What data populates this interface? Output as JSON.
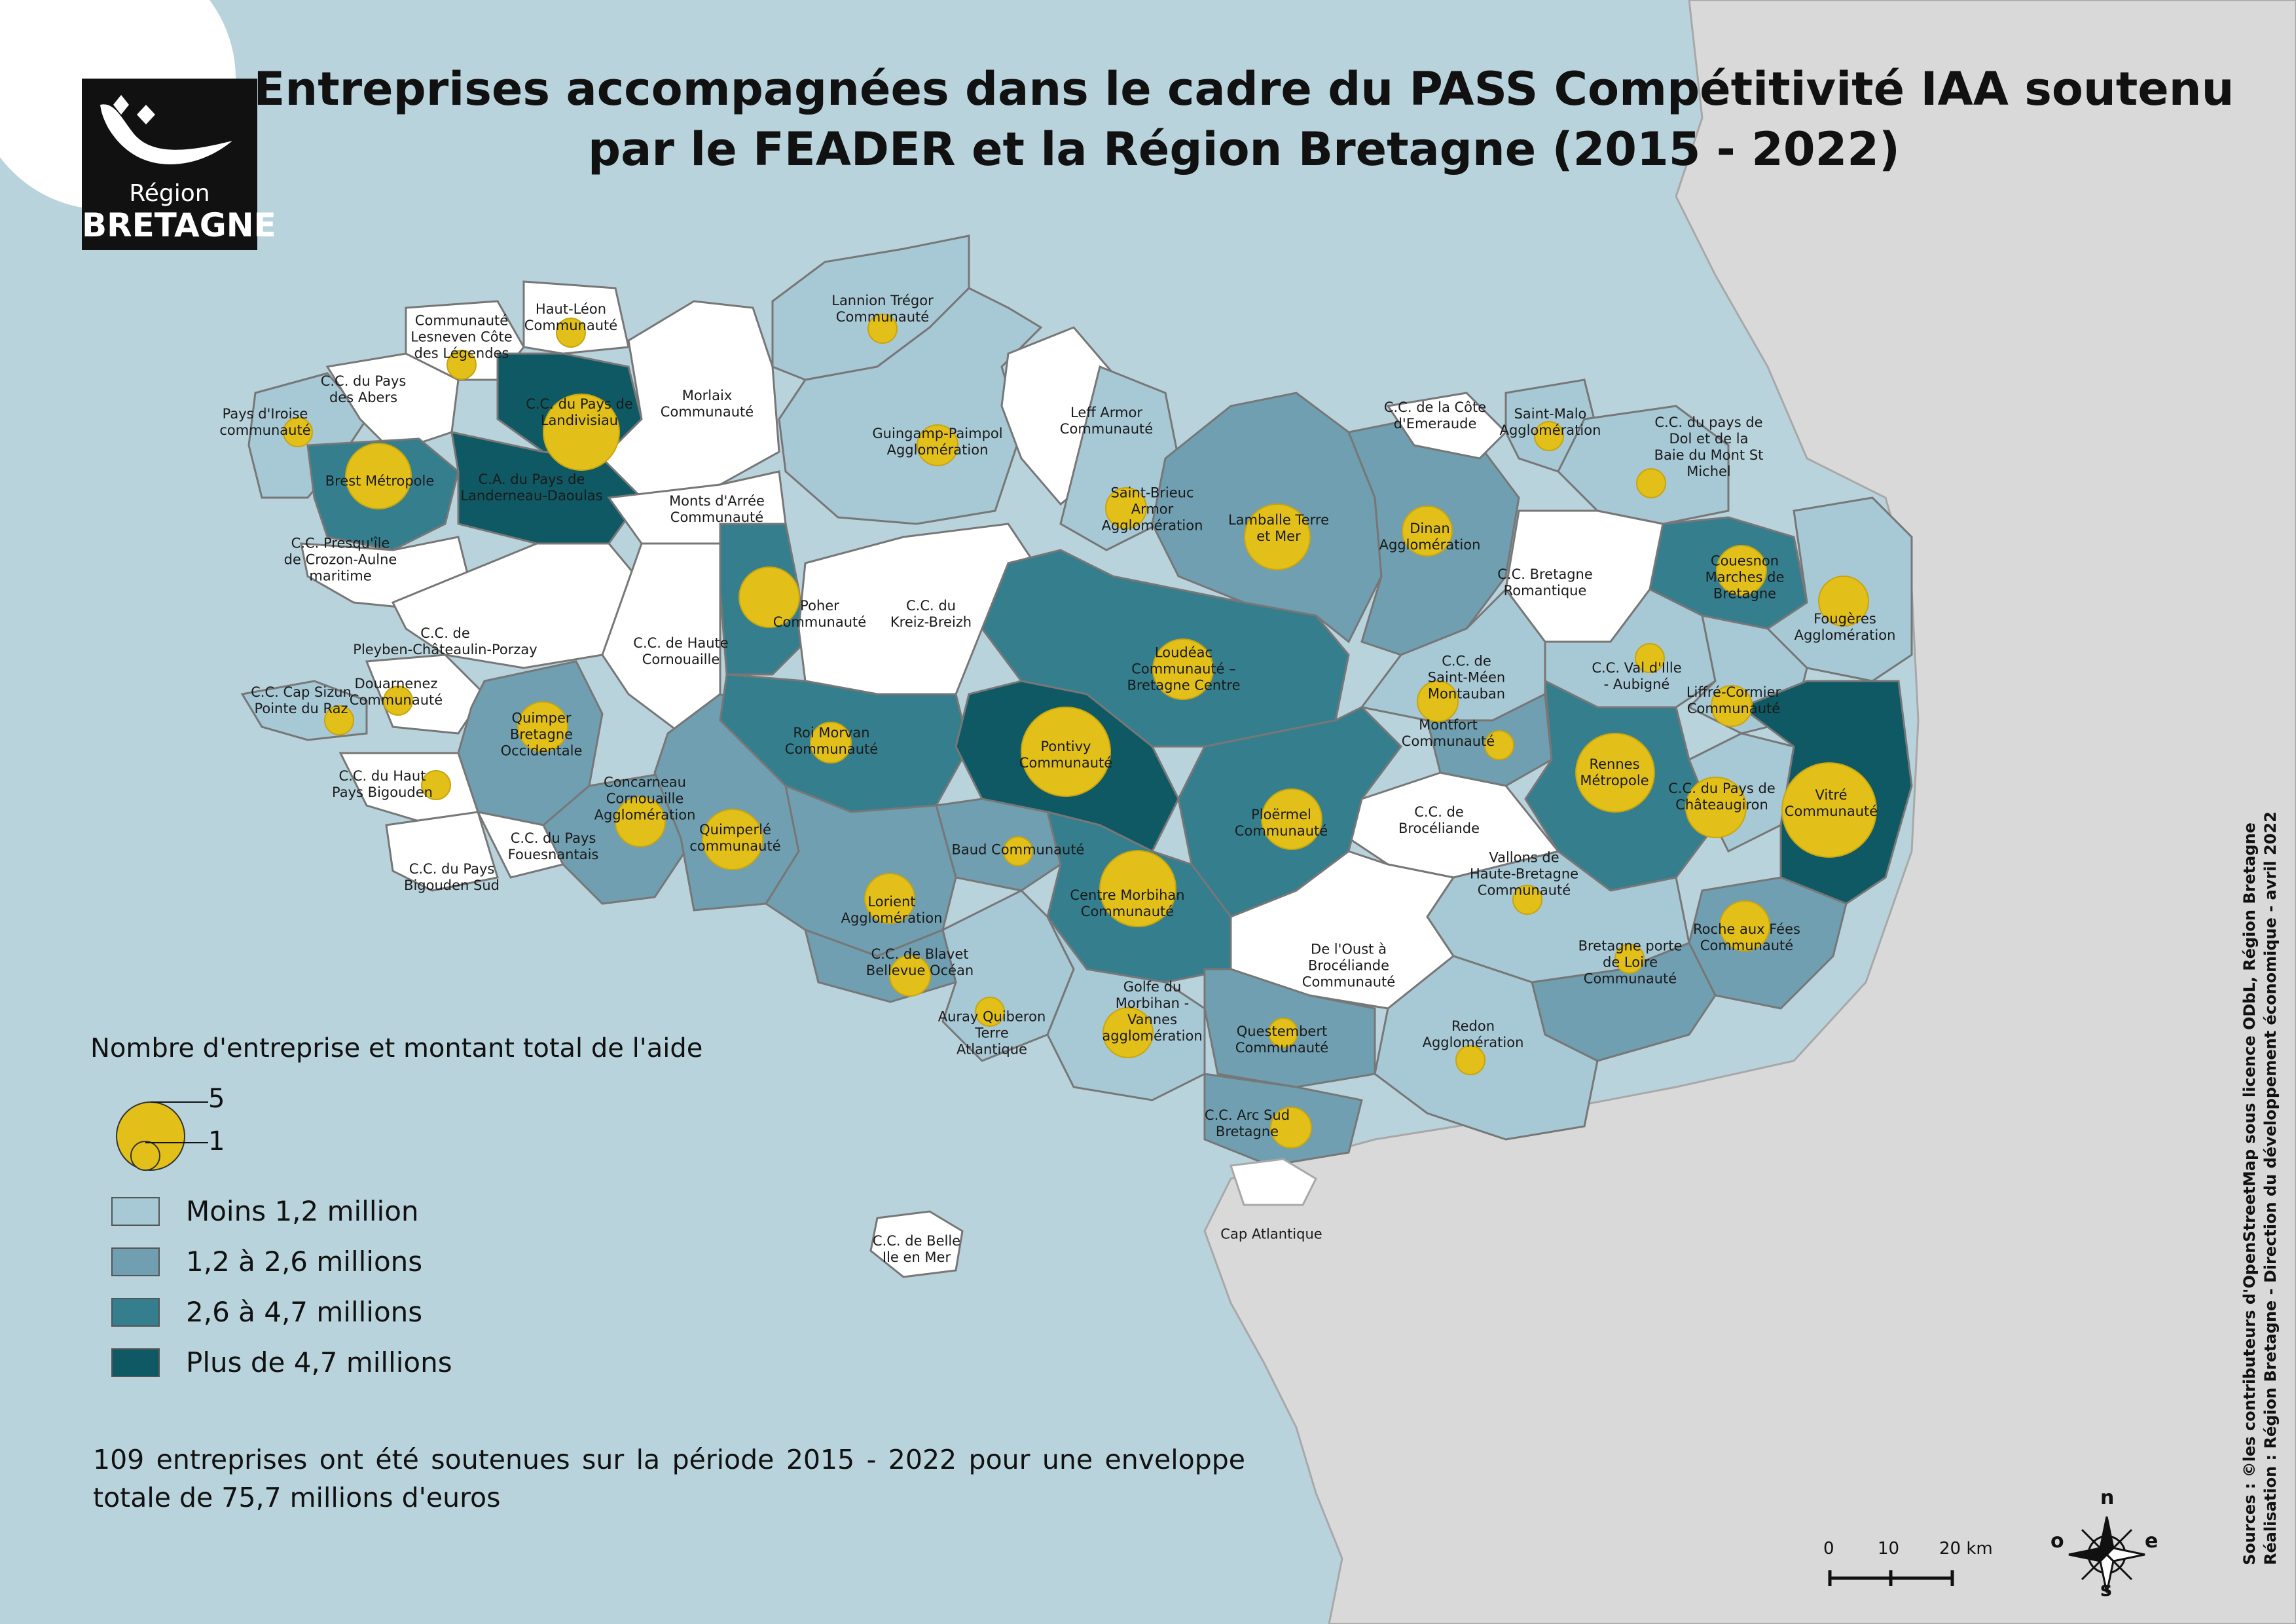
{
  "title": {
    "line1": "Entreprises accompagnées dans le cadre du PASS Compétitivité IAA soutenu",
    "line2": "par le FEADER et la Région Bretagne (2015 - 2022)"
  },
  "logo": {
    "top": "Région",
    "bottom": "BRETAGNE",
    "icon": "ermine-bird-icon"
  },
  "colors": {
    "sea": "#b9d3dc",
    "land_outside": "#d9d9d9",
    "no_data": "#ffffff",
    "class1": "#a7c8d5",
    "class2": "#6f9fb0",
    "class3": "#347e8e",
    "class4": "#0e5964",
    "circle": "#e2c019"
  },
  "legend": {
    "title": "Nombre d'entreprise et montant total de l'aide",
    "circle_max": "5",
    "circle_min": "1",
    "classes": [
      {
        "label": "Moins 1,2 million",
        "color": "#a7c8d5"
      },
      {
        "label": "1,2 à 2,6 millions",
        "color": "#6f9fb0"
      },
      {
        "label": "2,6 à 4,7 millions",
        "color": "#347e8e"
      },
      {
        "label": "Plus de 4,7 millions",
        "color": "#0e5964"
      }
    ]
  },
  "note": "109 entreprises ont été soutenues sur la période 2015 - 2022 pour une enveloppe totale de 75,7 millions d'euros",
  "credits": {
    "line1": "Sources : ©les contributeurs d'OpenStreetMap sous licence ODbL, Région Bretagne",
    "line2": "Réalisation : Région Bretagne - Direction du développement économique - avril 2022"
  },
  "scale": {
    "ticks": [
      "0",
      "10",
      "20 km"
    ]
  },
  "compass": {
    "n": "n",
    "e": "e",
    "s": "s",
    "o": "o"
  },
  "labels": {
    "lesneven": "Communauté\nLesneven Côte\ndes Légendes",
    "haut_leon": "Haut-Léon\nCommunauté",
    "abers": "C.C. du Pays\ndes Abers",
    "iroise": "Pays d'Iroise\ncommunauté",
    "brest": "Brest Métropole",
    "landivisiau": "C.C. du Pays de\nLandivisiau",
    "landerneau": "C.A. du Pays de\nLanderneau-Daoulas",
    "morlaix": "Morlaix\nCommunauté",
    "monts_arree": "Monts d'Arrée\nCommunauté",
    "crozon": "C.C. Presqu'île\nde Crozon-Aulne\nmaritime",
    "pleyben": "C.C. de\nPleyben-Châteaulin-Porzay",
    "haute_cornouaille": "C.C. de Haute\nCornouaille",
    "douarnenez": "Douarnenez\nCommunauté",
    "cap_sizun": "C.C. Cap Sizun\nPointe du Raz",
    "haut_bigouden": "C.C. du Haut\nPays Bigouden",
    "quimper": "Quimper\nBretagne\nOccidentale",
    "concarneau": "Concarneau\nCornouaille\nAgglomération",
    "fouesnantais": "C.C. du Pays\nFouesnantais",
    "bigouden_sud": "C.C. du Pays\nBigouden Sud",
    "quimperle": "Quimperlé\ncommunauté",
    "lannion": "Lannion Trégor\nCommunauté",
    "guingamp": "Guingamp-Paimpol\nAgglomération",
    "leff": "Leff Armor\nCommunauté",
    "saint_brieuc": "Saint-Brieuc\nArmor\nAgglomération",
    "poher": "Poher\nCommunauté",
    "kreiz_breizh": "C.C. du\nKreiz-Breizh",
    "roi_morvan": "Roi Morvan\nCommunauté",
    "loudeac": "Loudéac\nCommunauté –\nBretagne Centre",
    "pontivy": "Pontivy\nCommunauté",
    "lorient": "Lorient\nAgglomération",
    "baud": "Baud Communauté",
    "centre_morbihan": "Centre Morbihan\nCommunauté",
    "blavet": "C.C. de Blavet\nBellevue Océan",
    "auray": "Auray Quiberon\nTerre\nAtlantique",
    "golfe": "Golfe du\nMorbihan -\nVannes\nagglomération",
    "belle_ile": "C.C. de Belle\nIle en Mer",
    "lamballe": "Lamballe Terre\net Mer",
    "dinan": "Dinan\nAgglomération",
    "cote_emeraude": "C.C. de la Côte\nd'Emeraude",
    "saint_malo": "Saint-Malo\nAgglomération",
    "dol": "C.C. du pays de\nDol et de la\nBaie du Mont St\nMichel",
    "bretagne_romantique": "C.C. Bretagne\nRomantique",
    "couesnon": "Couesnon\nMarches de\nBretagne",
    "fougeres": "Fougères\nAgglomération",
    "saint_meen": "C.C. de\nSaint-Méen\nMontauban",
    "montfort": "Montfort\nCommunauté",
    "val_ille": "C.C. Val d'Ille\n- Aubigné",
    "liffre": "Liffré-Cormier\nCommunauté",
    "rennes": "Rennes\nMétropole",
    "chateaugiron": "C.C. du Pays de\nChâteaugiron",
    "vitre": "Vitré\nCommunauté",
    "ploermel": "Ploërmel\nCommunauté",
    "broceliande": "C.C. de\nBrocéliande",
    "oust": "De l'Oust à\nBrocéliande\nCommunauté",
    "vallons": "Vallons de\nHaute-Bretagne\nCommunauté",
    "roche_fees": "Roche aux Fées\nCommunauté",
    "bretagne_loire": "Bretagne porte\nde Loire\nCommunauté",
    "redon": "Redon\nAgglomération",
    "questembert": "Questembert\nCommunauté",
    "arc_sud": "C.C. Arc Sud\nBretagne",
    "cap_atlantique": "Cap Atlantique"
  }
}
